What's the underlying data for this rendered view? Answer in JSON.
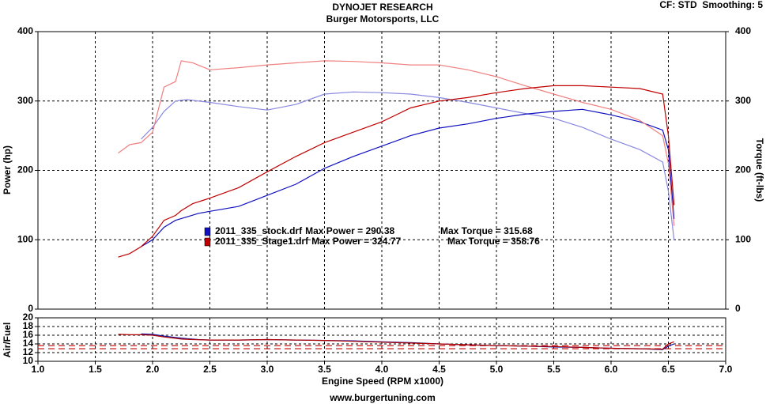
{
  "chart_data": {
    "type": "line",
    "title": "DYNOJET RESEARCH",
    "subtitle": "Burger Motorsports, LLC",
    "settings_label": "CF: STD  Smoothing: 5",
    "x_label": "Engine Speed (RPM x1000)",
    "y_label": "Power (hp)",
    "y2_label": "Torque (ft-lbs)",
    "afr_label": "Air/Fuel",
    "footer": "www.burgertuning.com",
    "grid": true,
    "xlim": [
      1.0,
      7.0
    ],
    "xticks": [
      {
        "value": 1,
        "label": "1.0"
      },
      1.5,
      {
        "value": 2,
        "label": "2.0"
      },
      2.5,
      {
        "value": 3,
        "label": "3.0"
      },
      3.5,
      {
        "value": 4,
        "label": "4.0"
      },
      4.5,
      {
        "value": 5,
        "label": "5.0"
      },
      5.5,
      {
        "value": 6,
        "label": "6.0"
      },
      6.5,
      {
        "value": 7,
        "label": "7.0"
      }
    ],
    "ylim": [
      0,
      400
    ],
    "yticks": [
      0,
      100,
      200,
      300,
      400
    ],
    "y2lim": [
      0,
      400
    ],
    "y2ticks": [
      0,
      100,
      200,
      300,
      400
    ],
    "afr_ylim": [
      10,
      20
    ],
    "afr_yticks": [
      10,
      12,
      14,
      16,
      18,
      20
    ],
    "afr_reference_lines": {
      "color": "#c00000",
      "values": [
        13.6,
        12.9
      ]
    },
    "runs": [
      {
        "name": "2011_335_stock.drf",
        "power_label": "Max Power = 290.38",
        "torque_label": "Max Torque = 315.68",
        "power_color": "#1010c0",
        "torque_color": "#8888e0",
        "afr_color": "#1010a0",
        "x": [
          1.9,
          2.0,
          2.1,
          2.2,
          2.3,
          2.4,
          2.5,
          2.75,
          3.0,
          3.25,
          3.5,
          3.75,
          4.0,
          4.25,
          4.5,
          4.75,
          5.0,
          5.25,
          5.5,
          5.75,
          6.0,
          6.25,
          6.45,
          6.5,
          6.55
        ],
        "power": [
          90,
          100,
          118,
          128,
          133,
          138,
          141,
          148,
          164,
          180,
          203,
          220,
          235,
          250,
          261,
          267,
          275,
          281,
          285,
          288,
          280,
          270,
          258,
          230,
          130
        ],
        "torque": [
          245,
          262,
          285,
          300,
          302,
          300,
          298,
          292,
          287,
          295,
          310,
          313,
          312,
          310,
          305,
          298,
          290,
          282,
          275,
          262,
          245,
          230,
          212,
          170,
          100
        ],
        "afr": [
          16.3,
          16.2,
          15.8,
          15.5,
          15.2,
          15.0,
          14.9,
          14.9,
          15.0,
          14.9,
          14.8,
          14.7,
          14.5,
          14.3,
          14.0,
          13.8,
          13.6,
          13.5,
          13.3,
          13.2,
          13.0,
          12.9,
          12.7,
          13.5,
          14.0
        ]
      },
      {
        "name": "2011_335_Stage1.drf",
        "power_label": "Max Power = 324.77",
        "torque_label": "Max Torque = 358.76",
        "power_color": "#c00000",
        "torque_color": "#f08080",
        "afr_color": "#b00000",
        "x": [
          1.7,
          1.8,
          1.9,
          2.0,
          2.1,
          2.2,
          2.25,
          2.35,
          2.5,
          2.75,
          3.0,
          3.25,
          3.5,
          3.75,
          4.0,
          4.25,
          4.5,
          4.75,
          5.0,
          5.25,
          5.5,
          5.75,
          6.0,
          6.25,
          6.45,
          6.5,
          6.55
        ],
        "power": [
          75,
          80,
          90,
          105,
          128,
          135,
          142,
          152,
          160,
          175,
          198,
          220,
          240,
          255,
          270,
          290,
          300,
          305,
          312,
          318,
          322,
          322,
          320,
          318,
          310,
          250,
          150
        ],
        "torque": [
          225,
          237,
          240,
          255,
          320,
          328,
          358,
          355,
          345,
          348,
          352,
          355,
          358,
          357,
          355,
          352,
          352,
          345,
          335,
          322,
          310,
          298,
          288,
          272,
          250,
          210,
          120
        ],
        "afr": [
          16.2,
          16.1,
          16.1,
          16.0,
          15.6,
          15.3,
          15.1,
          15.0,
          14.9,
          14.9,
          15.0,
          14.9,
          14.8,
          14.6,
          14.4,
          14.2,
          14.0,
          13.8,
          13.6,
          13.5,
          13.4,
          13.2,
          13.0,
          12.9,
          12.8,
          14.0,
          14.5
        ]
      }
    ]
  }
}
